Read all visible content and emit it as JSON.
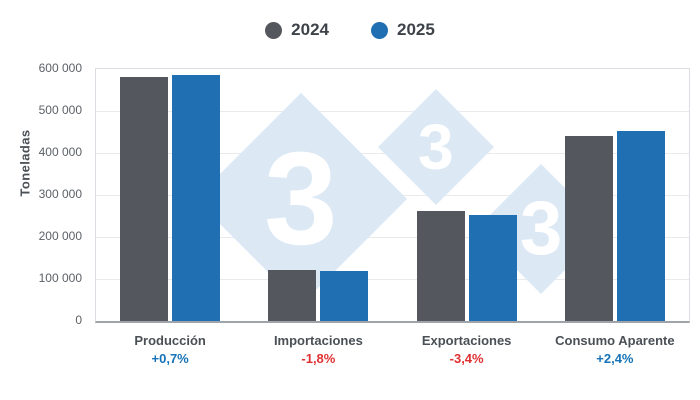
{
  "legend": {
    "items": [
      {
        "label": "2024",
        "color": "#54585e"
      },
      {
        "label": "2025",
        "color": "#1f6fb2"
      }
    ]
  },
  "chart_data": {
    "type": "bar",
    "title": "",
    "xlabel": "",
    "ylabel": "Toneladas",
    "ylim": [
      0,
      600000
    ],
    "ytick_step": 100000,
    "ytick_labels": [
      "600 000",
      "500 000",
      "400 000",
      "300 000",
      "200 000",
      "100 000",
      "0"
    ],
    "categories": [
      "Producción",
      "Importaciones",
      "Exportaciones",
      "Consumo Aparente"
    ],
    "series": [
      {
        "name": "2024",
        "color": "#54585e",
        "values": [
          581000,
          122000,
          262000,
          441000
        ]
      },
      {
        "name": "2025",
        "color": "#1f6fb2",
        "values": [
          585000,
          119800,
          253100,
          451600
        ]
      }
    ],
    "deltas": [
      {
        "label": "+0,7%",
        "sentiment": "positive",
        "color": "#1673b8"
      },
      {
        "label": "-1,8%",
        "sentiment": "negative",
        "color": "#e03131"
      },
      {
        "label": "-3,4%",
        "sentiment": "negative",
        "color": "#e03131"
      },
      {
        "label": "+2,4%",
        "sentiment": "positive",
        "color": "#1673b8"
      }
    ],
    "grid": true,
    "legend_position": "top"
  },
  "watermark": {
    "glyph": "3",
    "count": 3,
    "diamond_color": "#dce9f5",
    "glyph_color": "#ffffff"
  }
}
